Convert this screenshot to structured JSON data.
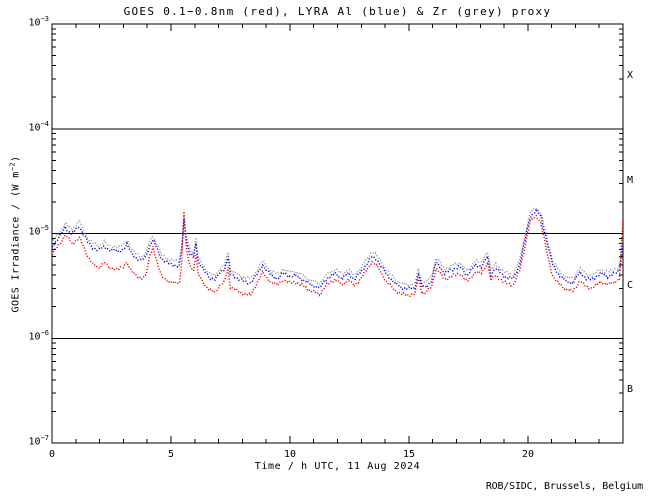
{
  "credit": "ROB/SIDC, Brussels, Belgium",
  "chart_data": {
    "type": "line",
    "marker_style": "dotted",
    "title": "GOES 0.1−0.8nm (red), LYRA Al (blue) & Zr (grey) proxy",
    "xlabel": "Time / h UTC, 11 Aug 2024",
    "ylabel": "GOES Irradiance / (W m−2)",
    "ylabel_parts": {
      "pre": "GOES Irradiance / (W m",
      "exp": "−2",
      "post": ")"
    },
    "xlim": [
      0,
      24
    ],
    "ylim_log": [
      -7,
      -3
    ],
    "x_major_step": 5,
    "x_minor_step": 1,
    "grid": false,
    "background": "#ffffff",
    "frame_color": "#000000",
    "x_ticks": [
      {
        "label": "0",
        "hour": 0
      },
      {
        "label": "5",
        "hour": 5
      },
      {
        "label": "10",
        "hour": 10
      },
      {
        "label": "15",
        "hour": 15
      },
      {
        "label": "20",
        "hour": 20
      }
    ],
    "y_ticks": [
      {
        "base": "10",
        "exp": "−3",
        "log": -3
      },
      {
        "base": "10",
        "exp": "−4",
        "log": -4
      },
      {
        "base": "10",
        "exp": "−5",
        "log": -5
      },
      {
        "base": "10",
        "exp": "−6",
        "log": -6
      },
      {
        "base": "10",
        "exp": "−7",
        "log": -7
      }
    ],
    "class_boundary_logs": [
      -4,
      -5,
      -6
    ],
    "class_bands": [
      {
        "label": "X",
        "center_log": -3.5
      },
      {
        "label": "M",
        "center_log": -4.5
      },
      {
        "label": "C",
        "center_log": -5.5
      },
      {
        "label": "B",
        "center_log": -6.5
      }
    ],
    "x_hours": [
      0,
      0.15,
      0.35,
      0.55,
      0.7,
      0.85,
      1.0,
      1.15,
      1.3,
      1.5,
      1.7,
      1.95,
      2.2,
      2.4,
      2.6,
      2.8,
      3.0,
      3.15,
      3.35,
      3.55,
      3.75,
      3.95,
      4.1,
      4.25,
      4.4,
      4.6,
      4.85,
      5.1,
      5.35,
      5.45,
      5.55,
      5.65,
      5.8,
      5.95,
      6.05,
      6.15,
      6.4,
      6.6,
      6.85,
      7.05,
      7.25,
      7.4,
      7.5,
      7.8,
      8.1,
      8.35,
      8.6,
      8.85,
      9.05,
      9.25,
      9.5,
      9.7,
      10.0,
      10.2,
      10.55,
      10.9,
      11.25,
      11.55,
      11.9,
      12.2,
      12.45,
      12.7,
      13.05,
      13.45,
      13.65,
      14.1,
      14.4,
      14.7,
      15.0,
      15.25,
      15.4,
      15.55,
      15.75,
      15.95,
      16.15,
      16.5,
      16.85,
      17.15,
      17.45,
      17.8,
      18.05,
      18.3,
      18.45,
      18.65,
      19.0,
      19.4,
      19.65,
      19.9,
      20.1,
      20.35,
      20.55,
      20.8,
      21.05,
      21.35,
      21.65,
      21.9,
      22.2,
      22.45,
      22.7,
      23.05,
      23.35,
      23.65,
      23.85,
      24
    ],
    "series": [
      {
        "name": "LYRA Zr proxy",
        "color": "#999999",
        "logy": [
          -5.09,
          -5.04,
          -4.98,
          -4.9,
          -4.94,
          -4.96,
          -4.92,
          -4.88,
          -4.96,
          -5.04,
          -5.09,
          -5.12,
          -5.08,
          -5.12,
          -5.12,
          -5.13,
          -5.11,
          -5.06,
          -5.15,
          -5.2,
          -5.22,
          -5.18,
          -5.08,
          -5.02,
          -5.1,
          -5.2,
          -5.24,
          -5.26,
          -5.27,
          -5.11,
          -4.85,
          -5.04,
          -5.15,
          -5.19,
          -5.05,
          -5.23,
          -5.32,
          -5.38,
          -5.4,
          -5.34,
          -5.3,
          -5.18,
          -5.35,
          -5.39,
          -5.42,
          -5.43,
          -5.36,
          -5.26,
          -5.32,
          -5.37,
          -5.39,
          -5.34,
          -5.37,
          -5.36,
          -5.4,
          -5.45,
          -5.48,
          -5.39,
          -5.34,
          -5.39,
          -5.34,
          -5.4,
          -5.31,
          -5.17,
          -5.21,
          -5.36,
          -5.43,
          -5.48,
          -5.49,
          -5.48,
          -5.34,
          -5.47,
          -5.46,
          -5.41,
          -5.23,
          -5.34,
          -5.3,
          -5.28,
          -5.36,
          -5.26,
          -5.28,
          -5.17,
          -5.35,
          -5.29,
          -5.37,
          -5.39,
          -5.26,
          -5.0,
          -4.8,
          -4.75,
          -4.8,
          -5.04,
          -5.26,
          -5.37,
          -5.42,
          -5.43,
          -5.33,
          -5.39,
          -5.4,
          -5.34,
          -5.37,
          -5.34,
          -5.32,
          -5.02
        ]
      },
      {
        "name": "LYRA Al proxy",
        "color": "#0000ee",
        "logy": [
          -5.13,
          -5.08,
          -5.02,
          -4.94,
          -4.98,
          -5.0,
          -4.96,
          -4.93,
          -5.0,
          -5.08,
          -5.13,
          -5.16,
          -5.12,
          -5.16,
          -5.16,
          -5.17,
          -5.15,
          -5.11,
          -5.19,
          -5.24,
          -5.26,
          -5.22,
          -5.12,
          -5.06,
          -5.14,
          -5.24,
          -5.28,
          -5.3,
          -5.31,
          -5.15,
          -4.87,
          -5.08,
          -5.19,
          -5.23,
          -5.09,
          -5.27,
          -5.36,
          -5.42,
          -5.44,
          -5.38,
          -5.34,
          -5.22,
          -5.39,
          -5.43,
          -5.46,
          -5.47,
          -5.4,
          -5.3,
          -5.36,
          -5.41,
          -5.43,
          -5.38,
          -5.41,
          -5.4,
          -5.44,
          -5.49,
          -5.52,
          -5.43,
          -5.38,
          -5.43,
          -5.38,
          -5.44,
          -5.35,
          -5.22,
          -5.25,
          -5.4,
          -5.47,
          -5.52,
          -5.53,
          -5.52,
          -5.38,
          -5.51,
          -5.5,
          -5.45,
          -5.27,
          -5.38,
          -5.34,
          -5.32,
          -5.4,
          -5.3,
          -5.32,
          -5.22,
          -5.39,
          -5.33,
          -5.41,
          -5.43,
          -5.3,
          -5.04,
          -4.84,
          -4.78,
          -4.84,
          -5.08,
          -5.3,
          -5.41,
          -5.46,
          -5.47,
          -5.37,
          -5.43,
          -5.44,
          -5.38,
          -5.41,
          -5.38,
          -5.36,
          -5.1
        ]
      },
      {
        "name": "GOES 0.1−0.8nm",
        "color": "#ee0000",
        "logy": [
          -5.2,
          -5.15,
          -5.09,
          -5.01,
          -5.05,
          -5.1,
          -5.07,
          -5.04,
          -5.11,
          -5.22,
          -5.29,
          -5.33,
          -5.27,
          -5.33,
          -5.33,
          -5.34,
          -5.32,
          -5.27,
          -5.36,
          -5.41,
          -5.43,
          -5.39,
          -5.23,
          -5.13,
          -5.26,
          -5.41,
          -5.45,
          -5.47,
          -5.48,
          -5.28,
          -4.78,
          -5.16,
          -5.31,
          -5.35,
          -5.2,
          -5.39,
          -5.48,
          -5.54,
          -5.56,
          -5.5,
          -5.46,
          -5.33,
          -5.51,
          -5.55,
          -5.58,
          -5.59,
          -5.48,
          -5.37,
          -5.43,
          -5.47,
          -5.49,
          -5.44,
          -5.47,
          -5.46,
          -5.5,
          -5.55,
          -5.58,
          -5.49,
          -5.44,
          -5.49,
          -5.44,
          -5.5,
          -5.41,
          -5.27,
          -5.31,
          -5.47,
          -5.54,
          -5.58,
          -5.59,
          -5.58,
          -5.42,
          -5.57,
          -5.56,
          -5.51,
          -5.33,
          -5.44,
          -5.4,
          -5.38,
          -5.46,
          -5.37,
          -5.38,
          -5.28,
          -5.45,
          -5.4,
          -5.47,
          -5.49,
          -5.36,
          -5.1,
          -4.89,
          -4.83,
          -4.9,
          -5.18,
          -5.41,
          -5.49,
          -5.54,
          -5.55,
          -5.45,
          -5.51,
          -5.52,
          -5.46,
          -5.49,
          -5.46,
          -5.44,
          -4.85
        ]
      }
    ]
  }
}
